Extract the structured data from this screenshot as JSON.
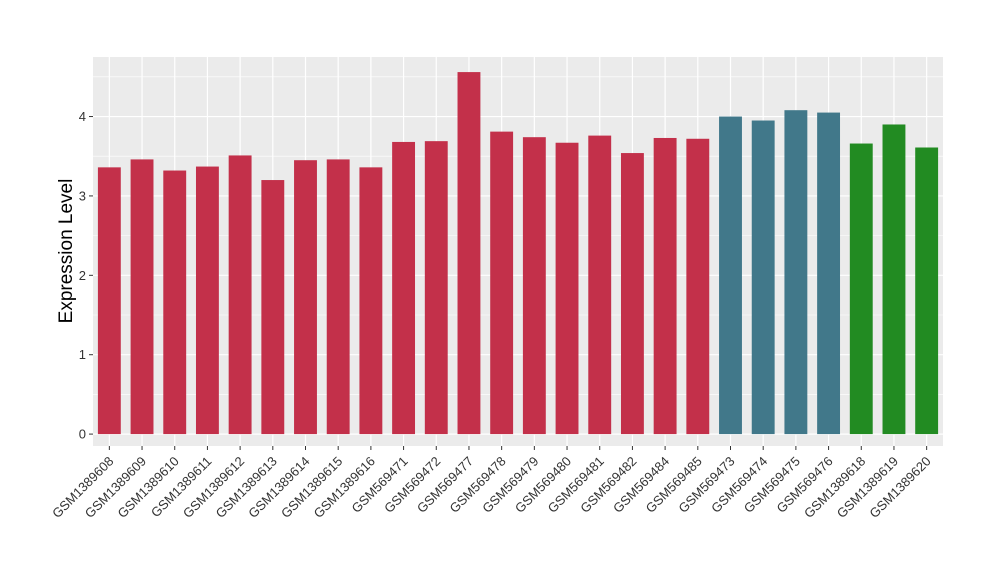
{
  "chart_data": {
    "type": "bar",
    "ylabel": "Expression Level",
    "xlabel": "",
    "ylim": [
      -0.15,
      4.75
    ],
    "yticks": [
      0,
      1,
      2,
      3,
      4
    ],
    "grid": true,
    "legend": "none",
    "categories": [
      "GSM1389608",
      "GSM1389609",
      "GSM1389610",
      "GSM1389611",
      "GSM1389612",
      "GSM1389613",
      "GSM1389614",
      "GSM1389615",
      "GSM1389616",
      "GSM569471",
      "GSM569472",
      "GSM569477",
      "GSM569478",
      "GSM569479",
      "GSM569480",
      "GSM569481",
      "GSM569482",
      "GSM569484",
      "GSM569485",
      "GSM569473",
      "GSM569474",
      "GSM569475",
      "GSM569476",
      "GSM1389618",
      "GSM1389619",
      "GSM1389620"
    ],
    "values": [
      3.36,
      3.46,
      3.32,
      3.37,
      3.51,
      3.2,
      3.45,
      3.46,
      3.36,
      3.68,
      3.69,
      4.56,
      3.81,
      3.74,
      3.67,
      3.76,
      3.54,
      3.73,
      3.72,
      4.0,
      3.95,
      4.08,
      4.05,
      3.66,
      3.9,
      3.61
    ],
    "groups": [
      0,
      0,
      0,
      0,
      0,
      0,
      0,
      0,
      0,
      0,
      0,
      0,
      0,
      0,
      0,
      0,
      0,
      0,
      0,
      1,
      1,
      1,
      1,
      2,
      2,
      2
    ],
    "group_colors": [
      "#c3304a",
      "#41788a",
      "#228b22"
    ],
    "panel_color": "#ebebeb",
    "grid_color": "#ffffff"
  }
}
